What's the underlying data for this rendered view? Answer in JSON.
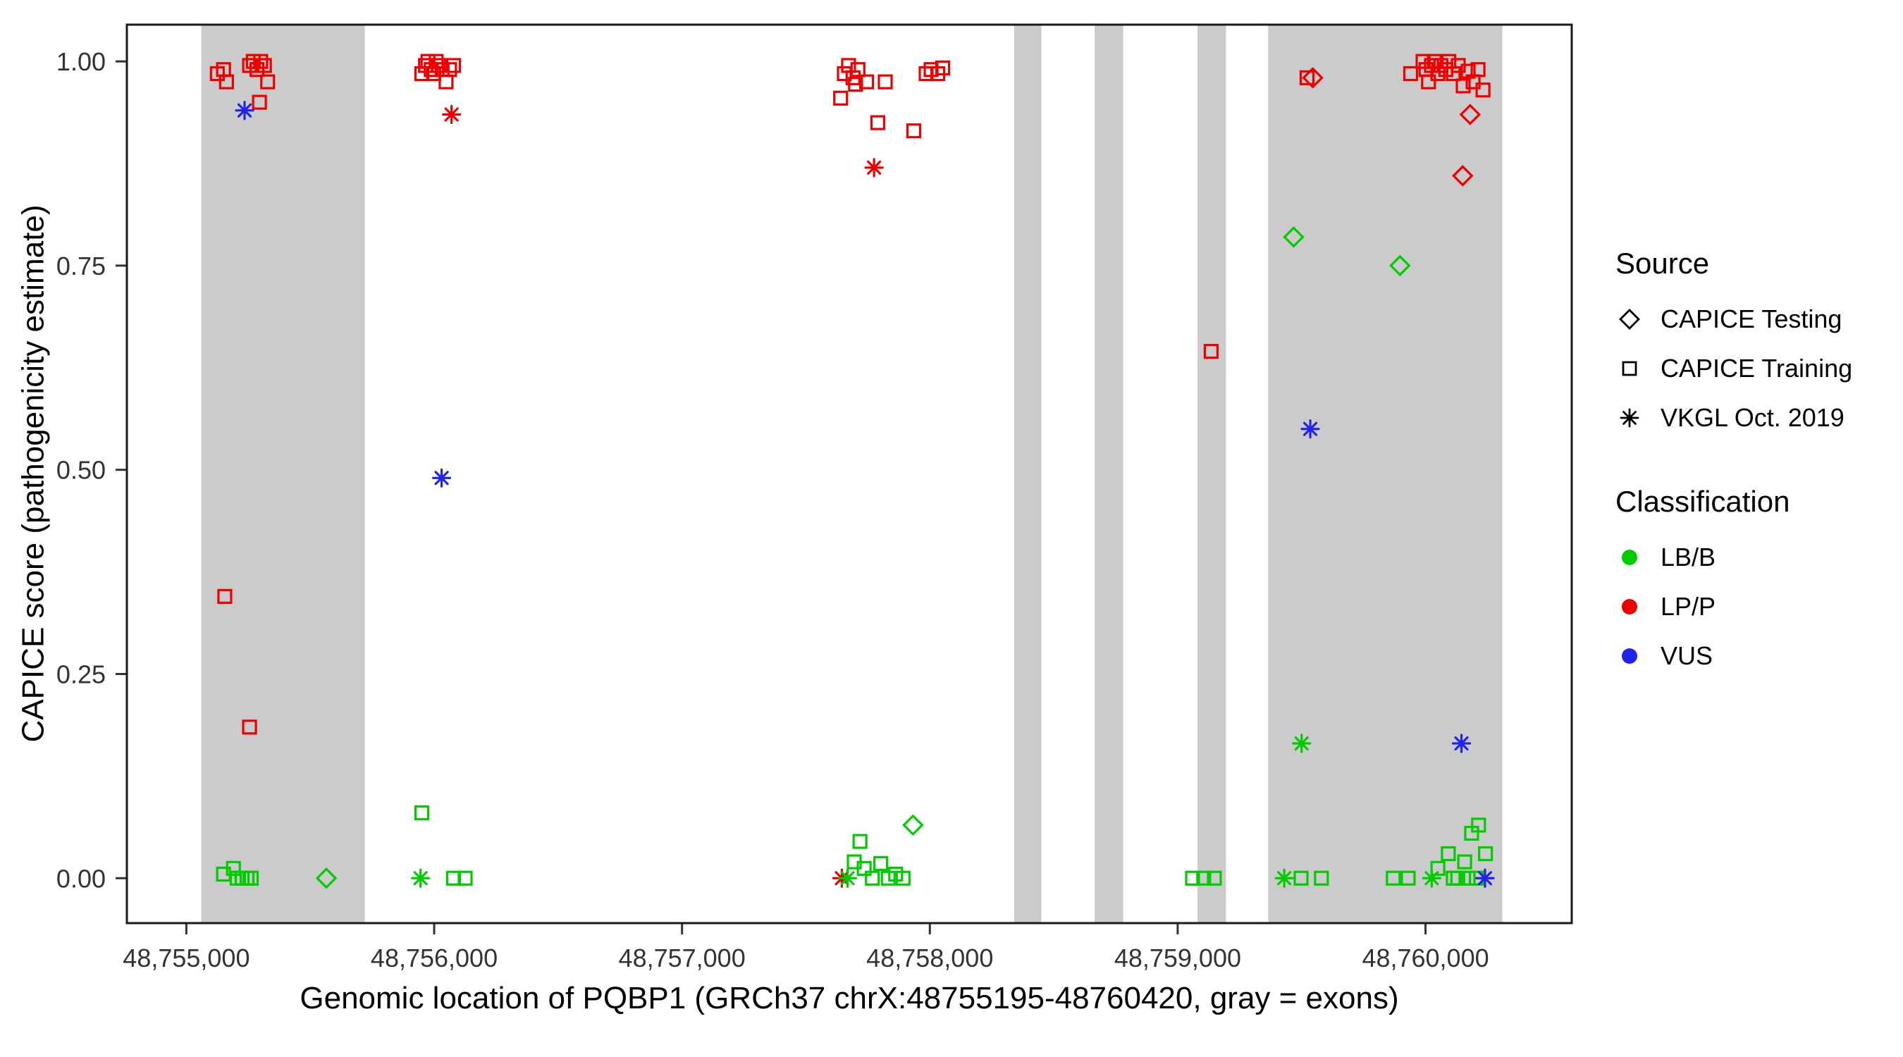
{
  "chart_data": {
    "type": "scatter",
    "title": "",
    "xlabel": "Genomic location of PQBP1 (GRCh37 chrX:48755195-48760420, gray = exons)",
    "ylabel": "CAPICE score (pathogenicity estimate)",
    "xlim": [
      48754760,
      48760590
    ],
    "ylim": [
      -0.055,
      1.045
    ],
    "xticks": [
      48755000,
      48756000,
      48757000,
      48758000,
      48759000,
      48760000
    ],
    "xtick_labels": [
      "48,755,000",
      "48,756,000",
      "48,757,000",
      "48,758,000",
      "48,759,000",
      "48,760,000"
    ],
    "yticks": [
      0.0,
      0.25,
      0.5,
      0.75,
      1.0
    ],
    "ytick_labels": [
      "0.00",
      "0.25",
      "0.50",
      "0.75",
      "1.00"
    ],
    "grid": false,
    "legend_position": "right",
    "exons": [
      [
        48755060,
        48755720
      ],
      [
        48758340,
        48758450
      ],
      [
        48758665,
        48758780
      ],
      [
        48759080,
        48759195
      ],
      [
        48759365,
        48760310
      ]
    ],
    "colors": {
      "LB/B": "#00CC00",
      "LP/P": "#EE0000",
      "VUS": "#2222EE",
      "exon": "#CBCBCB"
    },
    "legend": {
      "source_title": "Source",
      "source_items": [
        {
          "label": "CAPICE Testing",
          "marker": "diamond"
        },
        {
          "label": "CAPICE Training",
          "marker": "square"
        },
        {
          "label": "VKGL Oct. 2019",
          "marker": "asterisk"
        }
      ],
      "classification_title": "Classification",
      "classification_items": [
        {
          "label": "LB/B",
          "color": "#00CC00"
        },
        {
          "label": "LP/P",
          "color": "#EE0000"
        },
        {
          "label": "VUS",
          "color": "#2222EE"
        }
      ]
    },
    "points": [
      {
        "x": 48755125,
        "y": 0.985,
        "m": "square",
        "c": "LP/P"
      },
      {
        "x": 48755150,
        "y": 0.99,
        "m": "square",
        "c": "LP/P"
      },
      {
        "x": 48755162,
        "y": 0.975,
        "m": "square",
        "c": "LP/P"
      },
      {
        "x": 48755255,
        "y": 0.995,
        "m": "square",
        "c": "LP/P"
      },
      {
        "x": 48755270,
        "y": 1.0,
        "m": "square",
        "c": "LP/P"
      },
      {
        "x": 48755285,
        "y": 0.99,
        "m": "square",
        "c": "LP/P"
      },
      {
        "x": 48755300,
        "y": 1.0,
        "m": "square",
        "c": "LP/P"
      },
      {
        "x": 48755315,
        "y": 0.995,
        "m": "square",
        "c": "LP/P"
      },
      {
        "x": 48755328,
        "y": 0.975,
        "m": "square",
        "c": "LP/P"
      },
      {
        "x": 48755295,
        "y": 0.95,
        "m": "square",
        "c": "LP/P"
      },
      {
        "x": 48755235,
        "y": 0.94,
        "m": "asterisk",
        "c": "VUS"
      },
      {
        "x": 48755155,
        "y": 0.345,
        "m": "square",
        "c": "LP/P"
      },
      {
        "x": 48755255,
        "y": 0.185,
        "m": "square",
        "c": "LP/P"
      },
      {
        "x": 48755150,
        "y": 0.005,
        "m": "square",
        "c": "LB/B"
      },
      {
        "x": 48755190,
        "y": 0.012,
        "m": "square",
        "c": "LB/B"
      },
      {
        "x": 48755205,
        "y": 0.0,
        "m": "square",
        "c": "LB/B"
      },
      {
        "x": 48755225,
        "y": 0.0,
        "m": "square",
        "c": "LB/B"
      },
      {
        "x": 48755245,
        "y": 0.0,
        "m": "square",
        "c": "LB/B"
      },
      {
        "x": 48755262,
        "y": 0.0,
        "m": "square",
        "c": "LB/B"
      },
      {
        "x": 48755565,
        "y": 0.0,
        "m": "diamond",
        "c": "LB/B"
      },
      {
        "x": 48755950,
        "y": 0.985,
        "m": "square",
        "c": "LP/P"
      },
      {
        "x": 48755965,
        "y": 0.995,
        "m": "square",
        "c": "LP/P"
      },
      {
        "x": 48755975,
        "y": 1.0,
        "m": "square",
        "c": "LP/P"
      },
      {
        "x": 48755988,
        "y": 0.99,
        "m": "square",
        "c": "LP/P"
      },
      {
        "x": 48755998,
        "y": 0.985,
        "m": "square",
        "c": "LP/P"
      },
      {
        "x": 48756008,
        "y": 1.0,
        "m": "square",
        "c": "LP/P"
      },
      {
        "x": 48756018,
        "y": 0.995,
        "m": "square",
        "c": "LP/P"
      },
      {
        "x": 48756032,
        "y": 0.99,
        "m": "square",
        "c": "LP/P"
      },
      {
        "x": 48756048,
        "y": 0.975,
        "m": "square",
        "c": "LP/P"
      },
      {
        "x": 48756062,
        "y": 0.99,
        "m": "square",
        "c": "LP/P"
      },
      {
        "x": 48756078,
        "y": 0.995,
        "m": "square",
        "c": "LP/P"
      },
      {
        "x": 48756070,
        "y": 0.935,
        "m": "asterisk",
        "c": "LP/P"
      },
      {
        "x": 48756030,
        "y": 0.49,
        "m": "asterisk",
        "c": "VUS"
      },
      {
        "x": 48755950,
        "y": 0.08,
        "m": "square",
        "c": "LB/B"
      },
      {
        "x": 48755945,
        "y": 0.0,
        "m": "asterisk",
        "c": "LB/B"
      },
      {
        "x": 48756078,
        "y": 0.0,
        "m": "square",
        "c": "LB/B"
      },
      {
        "x": 48756125,
        "y": 0.0,
        "m": "square",
        "c": "LB/B"
      },
      {
        "x": 48757640,
        "y": 0.955,
        "m": "square",
        "c": "LP/P"
      },
      {
        "x": 48757655,
        "y": 0.985,
        "m": "square",
        "c": "LP/P"
      },
      {
        "x": 48757672,
        "y": 0.995,
        "m": "square",
        "c": "LP/P"
      },
      {
        "x": 48757690,
        "y": 0.98,
        "m": "square",
        "c": "LP/P"
      },
      {
        "x": 48757710,
        "y": 0.99,
        "m": "square",
        "c": "LP/P"
      },
      {
        "x": 48757700,
        "y": 0.972,
        "m": "square",
        "c": "LP/P"
      },
      {
        "x": 48757745,
        "y": 0.975,
        "m": "square",
        "c": "LP/P"
      },
      {
        "x": 48757820,
        "y": 0.975,
        "m": "square",
        "c": "LP/P"
      },
      {
        "x": 48757985,
        "y": 0.985,
        "m": "square",
        "c": "LP/P"
      },
      {
        "x": 48758005,
        "y": 0.99,
        "m": "square",
        "c": "LP/P"
      },
      {
        "x": 48758032,
        "y": 0.985,
        "m": "square",
        "c": "LP/P"
      },
      {
        "x": 48758052,
        "y": 0.992,
        "m": "square",
        "c": "LP/P"
      },
      {
        "x": 48757790,
        "y": 0.925,
        "m": "square",
        "c": "LP/P"
      },
      {
        "x": 48757935,
        "y": 0.915,
        "m": "square",
        "c": "LP/P"
      },
      {
        "x": 48757775,
        "y": 0.87,
        "m": "asterisk",
        "c": "LP/P"
      },
      {
        "x": 48757645,
        "y": 0.0,
        "m": "asterisk",
        "c": "LP/P"
      },
      {
        "x": 48757668,
        "y": 0.0,
        "m": "asterisk",
        "c": "LB/B"
      },
      {
        "x": 48757695,
        "y": 0.02,
        "m": "square",
        "c": "LB/B"
      },
      {
        "x": 48757718,
        "y": 0.045,
        "m": "square",
        "c": "LB/B"
      },
      {
        "x": 48757735,
        "y": 0.012,
        "m": "square",
        "c": "LB/B"
      },
      {
        "x": 48757768,
        "y": 0.0,
        "m": "square",
        "c": "LB/B"
      },
      {
        "x": 48757802,
        "y": 0.018,
        "m": "square",
        "c": "LB/B"
      },
      {
        "x": 48757832,
        "y": 0.0,
        "m": "square",
        "c": "LB/B"
      },
      {
        "x": 48757862,
        "y": 0.005,
        "m": "square",
        "c": "LB/B"
      },
      {
        "x": 48757892,
        "y": 0.0,
        "m": "square",
        "c": "LB/B"
      },
      {
        "x": 48757932,
        "y": 0.065,
        "m": "diamond",
        "c": "LB/B"
      },
      {
        "x": 48759135,
        "y": 0.645,
        "m": "square",
        "c": "LP/P"
      },
      {
        "x": 48759060,
        "y": 0.0,
        "m": "square",
        "c": "LB/B"
      },
      {
        "x": 48759105,
        "y": 0.0,
        "m": "square",
        "c": "LB/B"
      },
      {
        "x": 48759148,
        "y": 0.0,
        "m": "square",
        "c": "LB/B"
      },
      {
        "x": 48759522,
        "y": 0.98,
        "m": "square",
        "c": "LP/P"
      },
      {
        "x": 48759545,
        "y": 0.98,
        "m": "diamond",
        "c": "LP/P"
      },
      {
        "x": 48759468,
        "y": 0.785,
        "m": "diamond",
        "c": "LB/B"
      },
      {
        "x": 48759535,
        "y": 0.55,
        "m": "asterisk",
        "c": "VUS"
      },
      {
        "x": 48759500,
        "y": 0.165,
        "m": "asterisk",
        "c": "LB/B"
      },
      {
        "x": 48759430,
        "y": 0.0,
        "m": "asterisk",
        "c": "LB/B"
      },
      {
        "x": 48759498,
        "y": 0.0,
        "m": "square",
        "c": "LB/B"
      },
      {
        "x": 48759580,
        "y": 0.0,
        "m": "square",
        "c": "LB/B"
      },
      {
        "x": 48759897,
        "y": 0.75,
        "m": "diamond",
        "c": "LB/B"
      },
      {
        "x": 48759940,
        "y": 0.985,
        "m": "square",
        "c": "LP/P"
      },
      {
        "x": 48759990,
        "y": 1.0,
        "m": "square",
        "c": "LP/P"
      },
      {
        "x": 48760002,
        "y": 0.99,
        "m": "square",
        "c": "LP/P"
      },
      {
        "x": 48760012,
        "y": 0.975,
        "m": "square",
        "c": "LP/P"
      },
      {
        "x": 48760024,
        "y": 0.995,
        "m": "square",
        "c": "LP/P"
      },
      {
        "x": 48760036,
        "y": 1.0,
        "m": "square",
        "c": "LP/P"
      },
      {
        "x": 48760050,
        "y": 0.985,
        "m": "square",
        "c": "LP/P"
      },
      {
        "x": 48760062,
        "y": 0.995,
        "m": "square",
        "c": "LP/P"
      },
      {
        "x": 48760082,
        "y": 0.99,
        "m": "square",
        "c": "LP/P"
      },
      {
        "x": 48760094,
        "y": 1.0,
        "m": "square",
        "c": "LP/P"
      },
      {
        "x": 48760112,
        "y": 0.985,
        "m": "square",
        "c": "LP/P"
      },
      {
        "x": 48760132,
        "y": 0.995,
        "m": "square",
        "c": "LP/P"
      },
      {
        "x": 48760152,
        "y": 0.97,
        "m": "square",
        "c": "LP/P"
      },
      {
        "x": 48760172,
        "y": 0.988,
        "m": "square",
        "c": "LP/P"
      },
      {
        "x": 48760192,
        "y": 0.975,
        "m": "square",
        "c": "LP/P"
      },
      {
        "x": 48760212,
        "y": 0.99,
        "m": "square",
        "c": "LP/P"
      },
      {
        "x": 48760232,
        "y": 0.965,
        "m": "square",
        "c": "LP/P"
      },
      {
        "x": 48760180,
        "y": 0.935,
        "m": "diamond",
        "c": "LP/P"
      },
      {
        "x": 48760150,
        "y": 0.86,
        "m": "diamond",
        "c": "LP/P"
      },
      {
        "x": 48760145,
        "y": 0.165,
        "m": "asterisk",
        "c": "VUS"
      },
      {
        "x": 48759870,
        "y": 0.0,
        "m": "square",
        "c": "LB/B"
      },
      {
        "x": 48759930,
        "y": 0.0,
        "m": "square",
        "c": "LB/B"
      },
      {
        "x": 48760025,
        "y": 0.0,
        "m": "asterisk",
        "c": "LB/B"
      },
      {
        "x": 48760050,
        "y": 0.012,
        "m": "square",
        "c": "LB/B"
      },
      {
        "x": 48760092,
        "y": 0.03,
        "m": "square",
        "c": "LB/B"
      },
      {
        "x": 48760112,
        "y": 0.0,
        "m": "square",
        "c": "LB/B"
      },
      {
        "x": 48760130,
        "y": 0.0,
        "m": "square",
        "c": "LB/B"
      },
      {
        "x": 48760158,
        "y": 0.02,
        "m": "square",
        "c": "LB/B"
      },
      {
        "x": 48760172,
        "y": 0.0,
        "m": "square",
        "c": "LB/B"
      },
      {
        "x": 48760186,
        "y": 0.055,
        "m": "square",
        "c": "LB/B"
      },
      {
        "x": 48760214,
        "y": 0.065,
        "m": "square",
        "c": "LB/B"
      },
      {
        "x": 48760242,
        "y": 0.03,
        "m": "square",
        "c": "LB/B"
      },
      {
        "x": 48760205,
        "y": 0.0,
        "m": "square",
        "c": "LB/B"
      },
      {
        "x": 48760240,
        "y": 0.0,
        "m": "asterisk",
        "c": "VUS"
      }
    ]
  }
}
